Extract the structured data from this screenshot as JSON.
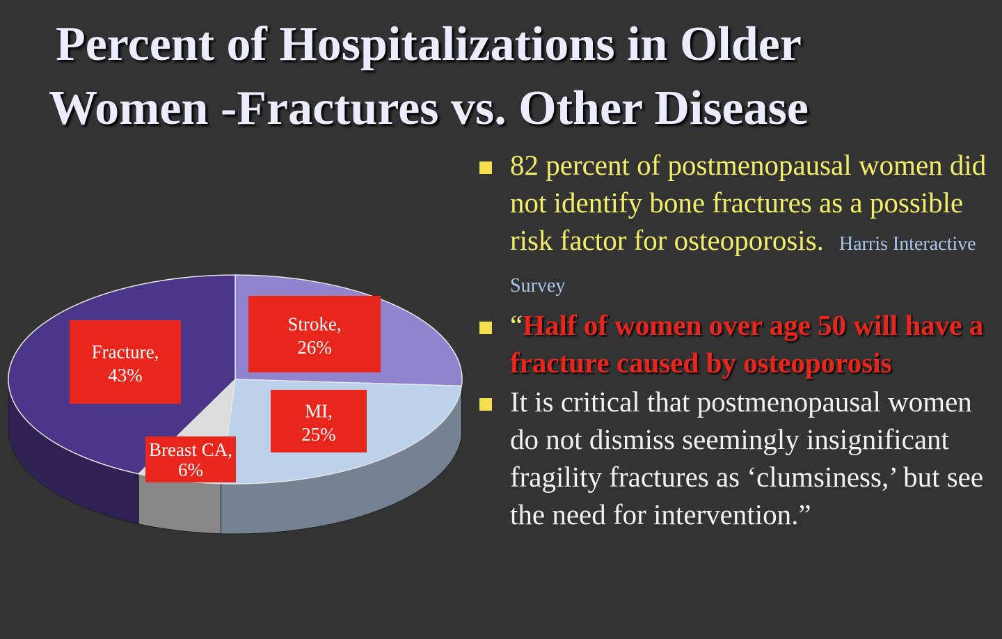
{
  "title": {
    "line1": "Percent of Hospitalizations in Older",
    "line2": "Women -Fractures vs. Other Disease"
  },
  "chart_data": {
    "type": "pie",
    "style": "3d",
    "slices": [
      {
        "name": "Stroke",
        "label": "Stroke,",
        "pct_label": "26%",
        "value": 26,
        "color": "#9184cf"
      },
      {
        "name": "MI",
        "label": "MI,",
        "pct_label": "25%",
        "value": 25,
        "color": "#bcd1ea"
      },
      {
        "name": "Breast CA",
        "label": "Breast CA,",
        "pct_label": "6%",
        "value": 6,
        "color": "#dcdcdc"
      },
      {
        "name": "Fracture",
        "label": "Fracture,",
        "pct_label": "43%",
        "value": 43,
        "color": "#4a3587"
      }
    ],
    "label_box_color": "#e8261b"
  },
  "bullets": [
    {
      "text": "82 percent of postmenopausal women did not identify  bone fractures as a possible risk factor for osteoporosis.",
      "source": "Harris Interactive Survey"
    },
    {
      "open_quote": "“",
      "quote": "Half of women over age 50 will have a fracture caused by osteoporosis"
    },
    {
      "text": "  It is critical that postmenopausal women do not dismiss seemingly insignificant fragility fractures as ‘clumsiness,’ but see the need for intervention.”"
    }
  ],
  "colors": {
    "background": "#333333",
    "title": "#ecebff",
    "yellow_text": "#f3ee6a",
    "red_text": "#e8261b",
    "bullet_marker": "#f4e04d"
  }
}
